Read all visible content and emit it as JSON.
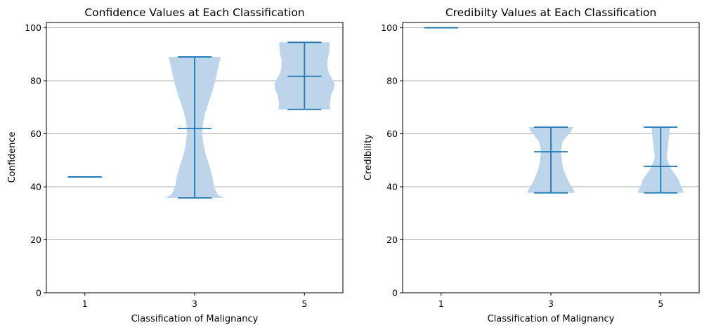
{
  "chart_data": [
    {
      "type": "violin",
      "title": "Confidence Values at Each Classification",
      "xlabel": "Classification of Malignancy",
      "ylabel": "Confidence",
      "categories": [
        "1",
        "3",
        "5"
      ],
      "x": [
        1,
        3,
        5
      ],
      "xlim": [
        0.3,
        5.7
      ],
      "ylim": [
        0,
        102
      ],
      "yticks": [
        0,
        20,
        40,
        60,
        80,
        100
      ],
      "grid": "y",
      "color": "#1f77b4",
      "fill_color": "#bcd5ea",
      "violins": [
        {
          "category": "1",
          "min": 43.7,
          "max": 43.7,
          "median": 43.7,
          "profile": []
        },
        {
          "category": "3",
          "min": 35.8,
          "max": 89.0,
          "median": 62.0,
          "profile": [
            [
              35.8,
              0.74
            ],
            [
              37,
              0.52
            ],
            [
              40,
              0.4
            ],
            [
              44,
              0.34
            ],
            [
              48,
              0.24
            ],
            [
              52,
              0.12
            ],
            [
              56,
              0.04
            ],
            [
              60,
              0.0
            ],
            [
              64,
              0.02
            ],
            [
              68,
              0.1
            ],
            [
              72,
              0.22
            ],
            [
              76,
              0.34
            ],
            [
              80,
              0.44
            ],
            [
              84,
              0.52
            ],
            [
              88,
              0.6
            ],
            [
              89,
              0.63
            ]
          ]
        },
        {
          "category": "5",
          "min": 69.2,
          "max": 94.5,
          "median": 81.7,
          "profile": [
            [
              69.2,
              0.62
            ],
            [
              71,
              0.6
            ],
            [
              73,
              0.62
            ],
            [
              75,
              0.66
            ],
            [
              77,
              0.74
            ],
            [
              79,
              0.76
            ],
            [
              81,
              0.66
            ],
            [
              83,
              0.56
            ],
            [
              85,
              0.52
            ],
            [
              88,
              0.52
            ],
            [
              91,
              0.58
            ],
            [
              94.5,
              0.6
            ]
          ]
        }
      ]
    },
    {
      "type": "violin",
      "title": "Credibilty Values at Each Classification",
      "xlabel": "Classification of Malignancy",
      "ylabel": "Credibility",
      "categories": [
        "1",
        "3",
        "5"
      ],
      "x": [
        1,
        3,
        5
      ],
      "xlim": [
        0.3,
        5.7
      ],
      "ylim": [
        0,
        102
      ],
      "yticks": [
        0,
        20,
        40,
        60,
        80,
        100
      ],
      "grid": "y",
      "color": "#1f77b4",
      "fill_color": "#bcd5ea",
      "violins": [
        {
          "category": "1",
          "min": 100.0,
          "max": 100.0,
          "median": 100.0,
          "profile": []
        },
        {
          "category": "3",
          "min": 37.7,
          "max": 62.5,
          "median": 53.2,
          "profile": [
            [
              37.7,
              0.55
            ],
            [
              39,
              0.5
            ],
            [
              41,
              0.38
            ],
            [
              43,
              0.3
            ],
            [
              45,
              0.22
            ],
            [
              47,
              0.16
            ],
            [
              49,
              0.12
            ],
            [
              51,
              0.1
            ],
            [
              53,
              0.08
            ],
            [
              55,
              0.1
            ],
            [
              57,
              0.14
            ],
            [
              59,
              0.28
            ],
            [
              61,
              0.42
            ],
            [
              62.5,
              0.5
            ]
          ]
        },
        {
          "category": "5",
          "min": 37.7,
          "max": 62.5,
          "median": 47.7,
          "profile": [
            [
              37.7,
              0.52
            ],
            [
              39,
              0.48
            ],
            [
              41,
              0.4
            ],
            [
              43,
              0.34
            ],
            [
              45,
              0.2
            ],
            [
              47,
              0.08
            ],
            [
              49,
              0.0
            ],
            [
              51,
              -0.06
            ],
            [
              53,
              -0.04
            ],
            [
              55,
              -0.02
            ],
            [
              57,
              0.0
            ],
            [
              59,
              0.02
            ],
            [
              61,
              0.04
            ],
            [
              62.5,
              0.06
            ]
          ]
        }
      ]
    }
  ]
}
